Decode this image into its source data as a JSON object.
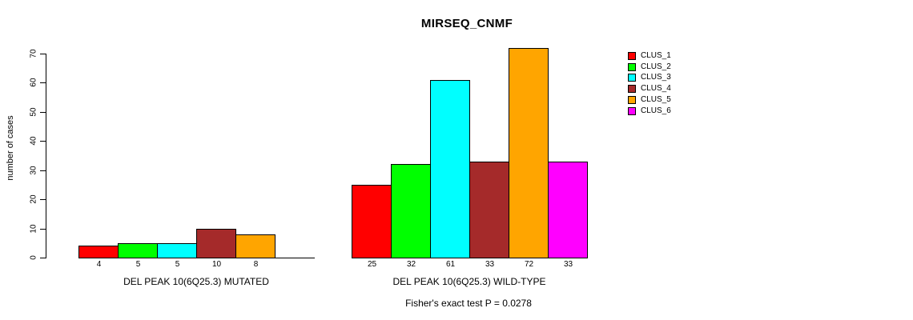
{
  "chart_data": {
    "type": "bar",
    "title": "MIRSEQ_CNMF",
    "ylabel": "number of cases",
    "ylim": [
      0,
      70
    ],
    "yticks": [
      0,
      10,
      20,
      30,
      40,
      50,
      60,
      70
    ],
    "grid": false,
    "legend_position": "right",
    "series": [
      {
        "name": "CLUS_1",
        "color": "#FF0000"
      },
      {
        "name": "CLUS_2",
        "color": "#00FF00"
      },
      {
        "name": "CLUS_3",
        "color": "#00FFFF"
      },
      {
        "name": "CLUS_4",
        "color": "#A52A2A"
      },
      {
        "name": "CLUS_5",
        "color": "#FFA500"
      },
      {
        "name": "CLUS_6",
        "color": "#FF00FF"
      }
    ],
    "groups": [
      {
        "label": "DEL PEAK 10(6Q25.3) MUTATED",
        "values": [
          4,
          5,
          5,
          10,
          8,
          0
        ],
        "bar_labels": [
          "4",
          "5",
          "5",
          "10",
          "8",
          ""
        ]
      },
      {
        "label": "DEL PEAK 10(6Q25.3) WILD-TYPE",
        "values": [
          25,
          32,
          61,
          33,
          72,
          33
        ],
        "bar_labels": [
          "25",
          "32",
          "61",
          "33",
          "72",
          "33"
        ]
      }
    ],
    "annotation": "Fisher's exact test P = 0.0278"
  }
}
